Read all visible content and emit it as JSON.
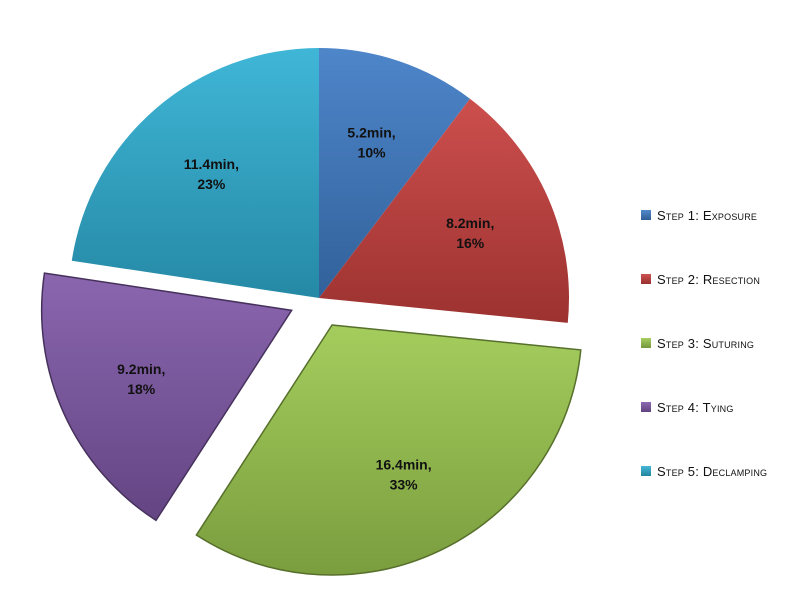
{
  "chart_data": {
    "type": "pie",
    "title": "",
    "slices": [
      {
        "label": "Step 1: Exposure",
        "value": 5.2,
        "percent": "10%",
        "data_label": [
          "5.2min,",
          "10%"
        ],
        "color": "#3f7cc5",
        "exploded": false
      },
      {
        "label": "Step 2: Resection",
        "value": 8.2,
        "percent": "16%",
        "data_label": [
          "8.2min,",
          "16%"
        ],
        "color": "#c8403e",
        "exploded": false
      },
      {
        "label": "Step 3: Suturing",
        "value": 16.4,
        "percent": "33%",
        "data_label": [
          "16.4min,",
          "33%"
        ],
        "color": "#9cc94f",
        "exploded": true
      },
      {
        "label": "Step 4: Tying",
        "value": 9.2,
        "percent": "18%",
        "data_label": [
          "9.2min,",
          "18%"
        ],
        "color": "#8059a8",
        "exploded": true
      },
      {
        "label": "Step 5: Declamping",
        "value": 11.4,
        "percent": "23%",
        "data_label": [
          "11.4min,",
          "23%"
        ],
        "color": "#2fb0d3",
        "exploded": false
      }
    ],
    "legend_position": "right"
  }
}
